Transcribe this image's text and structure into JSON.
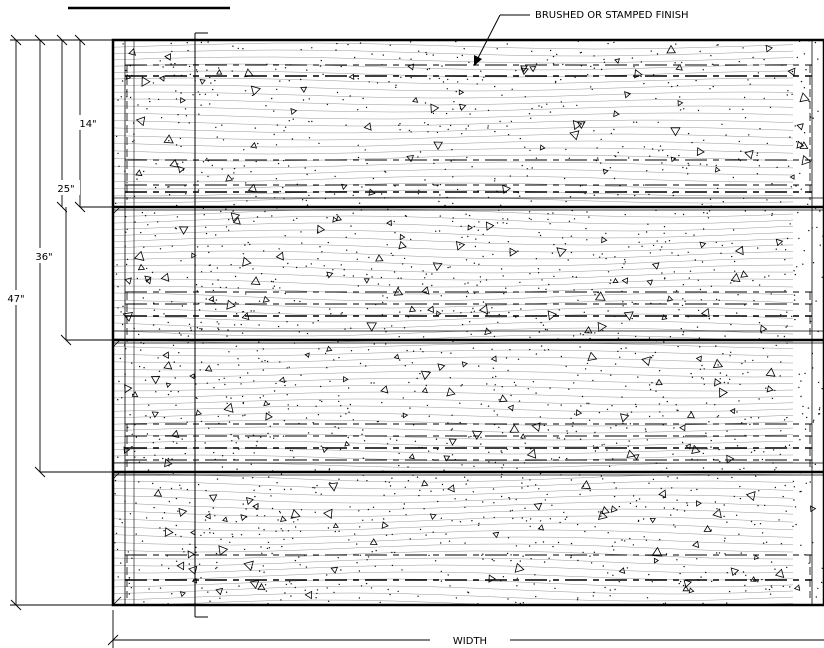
{
  "callout": {
    "text": "BRUSHED OR STAMPED FINISH"
  },
  "dimensions": [
    {
      "label": "14\""
    },
    {
      "label": "25\""
    },
    {
      "label": "36\""
    },
    {
      "label": "47\""
    }
  ],
  "width_label": "WIDTH",
  "step_count": 4,
  "material": "concrete"
}
